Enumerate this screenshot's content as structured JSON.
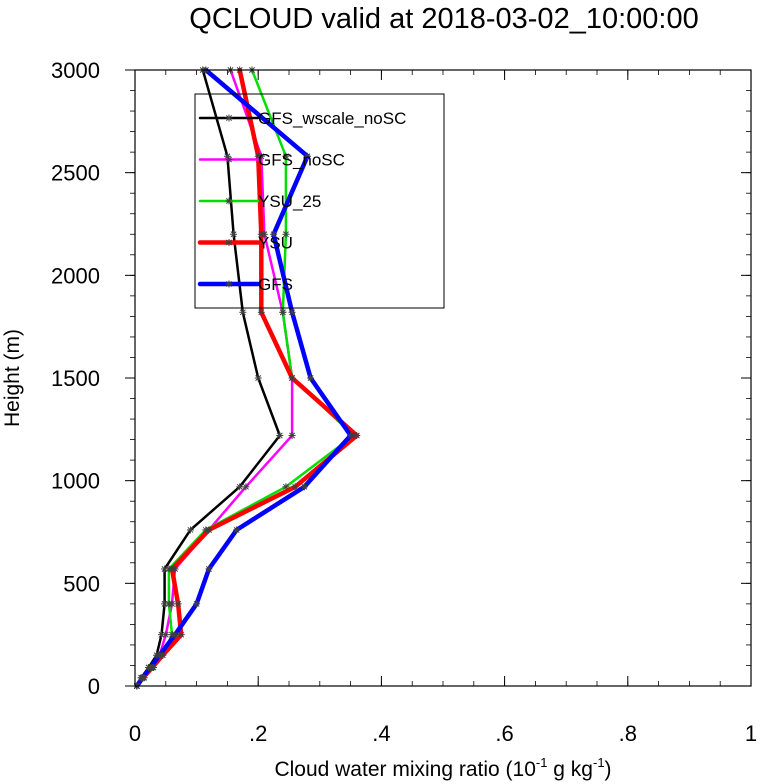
{
  "chart_data": {
    "type": "line",
    "title": "QCLOUD valid at 2018-03-02_10:00:00",
    "xlabel": "Cloud water mixing ratio (10",
    "xlabel_sup1": "-1",
    "xlabel_mid": " g kg",
    "xlabel_sup2": "-1",
    "xlabel_end": ")",
    "ylabel": "Height (m)",
    "xlim": [
      0,
      1
    ],
    "ylim": [
      0,
      3000
    ],
    "x_ticks": [
      0,
      0.2,
      0.4,
      0.6,
      0.8,
      1
    ],
    "x_tick_labels": [
      "0",
      ".2",
      ".4",
      ".6",
      ".8",
      "1"
    ],
    "y_ticks": [
      0,
      500,
      1000,
      1500,
      2000,
      2500,
      3000
    ],
    "y_tick_labels": [
      "0",
      "500",
      "1000",
      "1500",
      "2000",
      "2500",
      "3000"
    ],
    "grid": false,
    "legend_position": "top-left",
    "marker_color": "#404040",
    "series": [
      {
        "name": "GFS_wscale_noSC",
        "color": "#000000",
        "width": 2.5,
        "points": [
          [
            0.003,
            0
          ],
          [
            0.01,
            40
          ],
          [
            0.022,
            90
          ],
          [
            0.035,
            150
          ],
          [
            0.043,
            250
          ],
          [
            0.048,
            400
          ],
          [
            0.048,
            570
          ],
          [
            0.09,
            760
          ],
          [
            0.17,
            970
          ],
          [
            0.235,
            1220
          ],
          [
            0.2,
            1500
          ],
          [
            0.175,
            1820
          ],
          [
            0.16,
            2200
          ],
          [
            0.15,
            2580
          ],
          [
            0.11,
            3000
          ]
        ]
      },
      {
        "name": "GFS_noSC",
        "color": "#ff00ff",
        "width": 2.5,
        "points": [
          [
            0.003,
            0
          ],
          [
            0.01,
            40
          ],
          [
            0.025,
            90
          ],
          [
            0.04,
            150
          ],
          [
            0.05,
            250
          ],
          [
            0.06,
            400
          ],
          [
            0.065,
            570
          ],
          [
            0.12,
            760
          ],
          [
            0.18,
            970
          ],
          [
            0.255,
            1220
          ],
          [
            0.255,
            1500
          ],
          [
            0.24,
            1820
          ],
          [
            0.21,
            2200
          ],
          [
            0.205,
            2580
          ],
          [
            0.155,
            3000
          ]
        ]
      },
      {
        "name": "YSU_25",
        "color": "#00e000",
        "width": 2.5,
        "points": [
          [
            0.003,
            0
          ],
          [
            0.015,
            40
          ],
          [
            0.03,
            90
          ],
          [
            0.045,
            150
          ],
          [
            0.06,
            250
          ],
          [
            0.055,
            400
          ],
          [
            0.055,
            570
          ],
          [
            0.115,
            760
          ],
          [
            0.245,
            970
          ],
          [
            0.355,
            1220
          ],
          [
            0.255,
            1500
          ],
          [
            0.24,
            1820
          ],
          [
            0.245,
            2200
          ],
          [
            0.245,
            2580
          ],
          [
            0.19,
            3000
          ]
        ]
      },
      {
        "name": "YSU",
        "color": "#ff0000",
        "width": 4.5,
        "points": [
          [
            0.003,
            0
          ],
          [
            0.013,
            40
          ],
          [
            0.028,
            90
          ],
          [
            0.045,
            150
          ],
          [
            0.075,
            250
          ],
          [
            0.07,
            400
          ],
          [
            0.06,
            570
          ],
          [
            0.12,
            760
          ],
          [
            0.26,
            970
          ],
          [
            0.36,
            1220
          ],
          [
            0.255,
            1500
          ],
          [
            0.205,
            1820
          ],
          [
            0.205,
            2200
          ],
          [
            0.2,
            2580
          ],
          [
            0.17,
            3000
          ]
        ]
      },
      {
        "name": "GFS",
        "color": "#0000ff",
        "width": 4.5,
        "points": [
          [
            0.003,
            0
          ],
          [
            0.012,
            40
          ],
          [
            0.025,
            90
          ],
          [
            0.04,
            150
          ],
          [
            0.065,
            250
          ],
          [
            0.1,
            400
          ],
          [
            0.12,
            570
          ],
          [
            0.165,
            760
          ],
          [
            0.275,
            970
          ],
          [
            0.35,
            1220
          ],
          [
            0.285,
            1500
          ],
          [
            0.255,
            1820
          ],
          [
            0.225,
            2200
          ],
          [
            0.28,
            2580
          ],
          [
            0.115,
            3000
          ]
        ]
      }
    ]
  }
}
